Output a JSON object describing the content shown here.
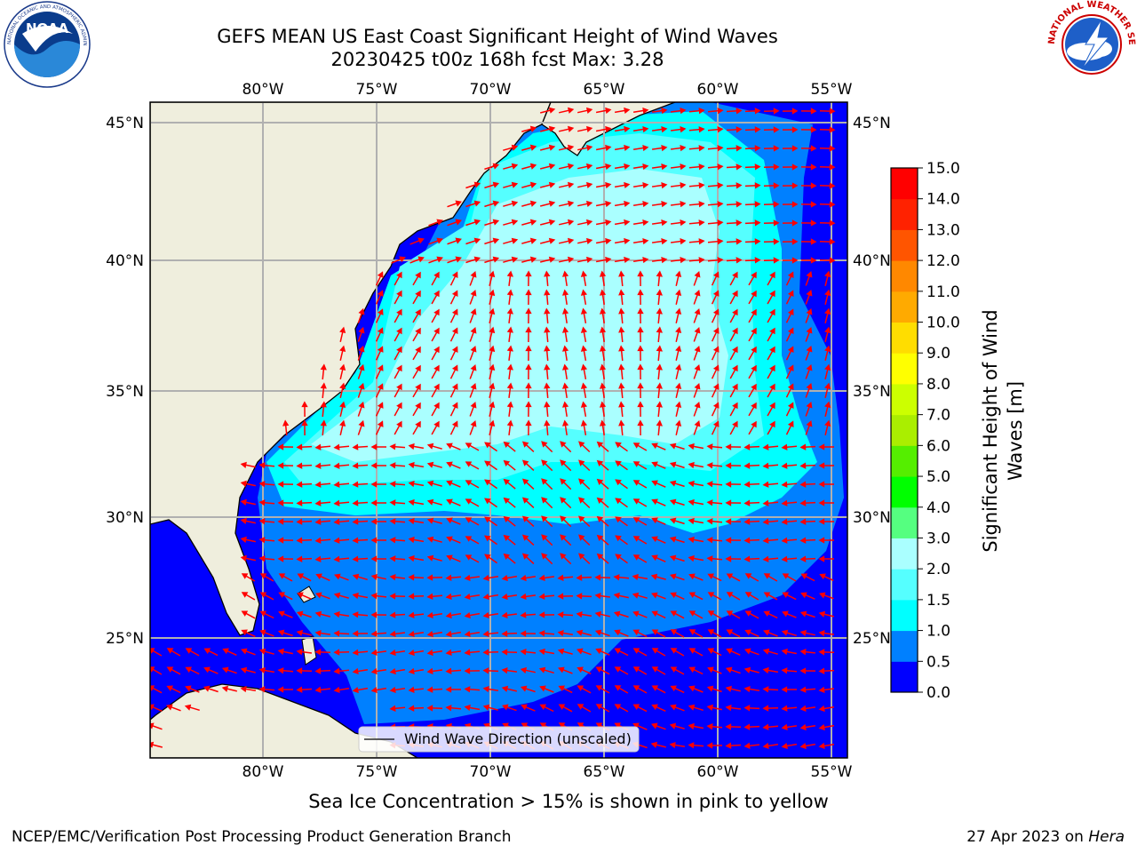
{
  "header": {
    "title_line1": "GEFS MEAN US East Coast Significant Height of Wind Waves",
    "title_line2": "20230425 t00z 168h fcst   Max: 3.28"
  },
  "logos": {
    "left": {
      "name": "noaa-logo",
      "text": "NOAA",
      "ring_text": "NATIONAL OCEANIC AND ATMOSPHERIC ADMINISTRATION · U.S. DEPARTMENT OF COMMERCE"
    },
    "right": {
      "name": "nws-logo",
      "ring_text": "NATIONAL WEATHER SERVICE"
    }
  },
  "map": {
    "lon_labels": [
      "80°W",
      "75°W",
      "70°W",
      "65°W",
      "60°W",
      "55°W"
    ],
    "lat_labels": [
      "45°N",
      "40°N",
      "35°N",
      "30°N",
      "25°N"
    ],
    "legend_label": "Wind Wave Direction (unscaled)",
    "arrow_color": "#ff0000",
    "land_color": "#efeedd"
  },
  "colorbar": {
    "label_line1": "Significant Height of Wind",
    "label_line2": "Waves [m]",
    "ticks": [
      "0.0",
      "0.5",
      "1.0",
      "1.5",
      "2.0",
      "3.0",
      "4.0",
      "5.0",
      "6.0",
      "7.0",
      "8.0",
      "9.0",
      "10.0",
      "11.0",
      "12.0",
      "13.0",
      "14.0",
      "15.0"
    ],
    "colors": [
      "#0000ff",
      "#0080ff",
      "#00ffff",
      "#55ffff",
      "#aaffff",
      "#55ff80",
      "#00ff00",
      "#55ee00",
      "#aaee00",
      "#ccff00",
      "#ffff00",
      "#ffdd00",
      "#ffaa00",
      "#ff8800",
      "#ff5500",
      "#ff2200",
      "#ff0000"
    ]
  },
  "footer": {
    "caption": "Sea Ice Concentration > 15% is shown in pink to yellow",
    "left": "NCEP/EMC/Verification Post Processing Product Generation Branch",
    "date": "27 Apr 2023 on",
    "machine": "Hera"
  }
}
